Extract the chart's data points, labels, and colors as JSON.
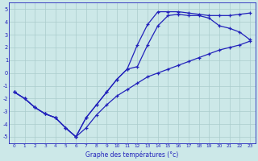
{
  "xlabel": "Graphe des températures (°c)",
  "hours": [
    0,
    1,
    2,
    3,
    4,
    5,
    6,
    7,
    8,
    9,
    10,
    11,
    12,
    13,
    14,
    15,
    16,
    17,
    18,
    19,
    20,
    21,
    22,
    23
  ],
  "line1": [
    -1.5,
    -2.0,
    -2.7,
    -3.2,
    -3.5,
    -4.3,
    -5.0,
    -4.3,
    -3.3,
    -2.5,
    -1.8,
    -1.3,
    -0.8,
    -0.3,
    0.0,
    0.3,
    0.6,
    0.9,
    1.2,
    1.5,
    1.8,
    2.0,
    2.2,
    2.5
  ],
  "line2": [
    -1.5,
    -2.0,
    -2.7,
    -3.2,
    -3.5,
    -4.3,
    -5.0,
    -3.5,
    -2.5,
    -1.5,
    -0.5,
    0.3,
    2.2,
    3.8,
    4.8,
    4.8,
    4.8,
    4.7,
    4.6,
    4.5,
    4.5,
    4.5,
    4.6,
    4.7
  ],
  "line3": [
    -1.5,
    -2.0,
    -2.7,
    -3.2,
    -3.5,
    -4.3,
    -5.0,
    -3.5,
    -2.5,
    -1.5,
    -0.5,
    0.3,
    0.5,
    2.2,
    3.7,
    4.5,
    4.6,
    4.5,
    4.5,
    4.3,
    3.7,
    3.5,
    3.2,
    2.6
  ],
  "line_color": "#2222bb",
  "bg_color": "#cce8e8",
  "grid_color": "#aacccc",
  "axis_color": "#2222bb",
  "ylim": [
    -5.5,
    5.5
  ],
  "xlim": [
    -0.5,
    23.5
  ],
  "yticks": [
    -5,
    -4,
    -3,
    -2,
    -1,
    0,
    1,
    2,
    3,
    4,
    5
  ],
  "xticks": [
    0,
    1,
    2,
    3,
    4,
    5,
    6,
    7,
    8,
    9,
    10,
    11,
    12,
    13,
    14,
    15,
    16,
    17,
    18,
    19,
    20,
    21,
    22,
    23
  ]
}
